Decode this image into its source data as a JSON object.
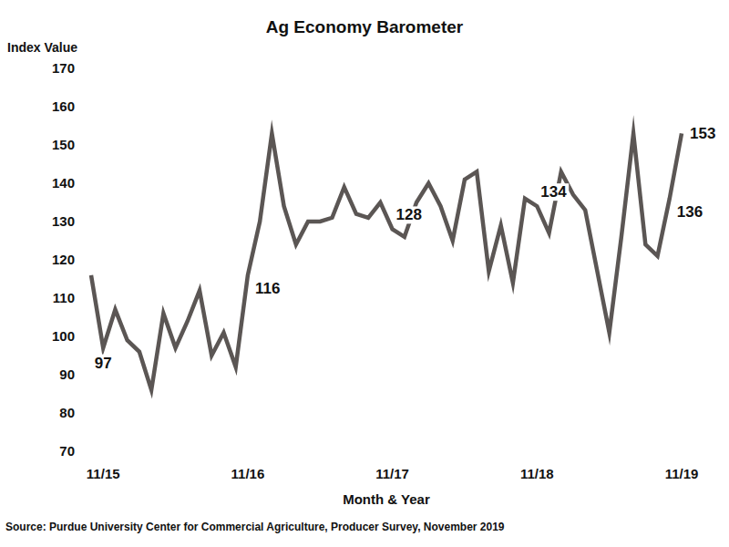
{
  "chart_data": {
    "type": "line",
    "title": "Ag Economy Barometer",
    "y_label": "Index Value",
    "x_label": "Month & Year",
    "source": "Source: Purdue University Center for Commercial Agriculture, Producer Survey, November 2019",
    "categories": [
      null,
      "11/15",
      null,
      null,
      null,
      null,
      null,
      null,
      null,
      null,
      null,
      null,
      null,
      "11/16",
      null,
      null,
      null,
      null,
      null,
      null,
      null,
      null,
      null,
      null,
      null,
      "11/17",
      null,
      null,
      null,
      null,
      null,
      null,
      null,
      null,
      null,
      null,
      null,
      "11/18",
      null,
      null,
      null,
      null,
      null,
      null,
      null,
      null,
      null,
      null,
      null,
      "11/19"
    ],
    "values": [
      116,
      97,
      107,
      99,
      96,
      86,
      106,
      97,
      104,
      112,
      95,
      101,
      92,
      116,
      130,
      153,
      134,
      124,
      130,
      130,
      131,
      139,
      132,
      131,
      135,
      128,
      126,
      135,
      140,
      134,
      125,
      141,
      143,
      117,
      129,
      114,
      136,
      134,
      127,
      143,
      137,
      133,
      117,
      101,
      126,
      153,
      124,
      121,
      136,
      153
    ],
    "value_labels": [
      null,
      "97",
      null,
      null,
      null,
      null,
      null,
      null,
      null,
      null,
      null,
      null,
      null,
      "116",
      null,
      null,
      null,
      null,
      null,
      null,
      null,
      null,
      null,
      null,
      null,
      "128",
      null,
      null,
      null,
      null,
      null,
      null,
      null,
      null,
      null,
      null,
      null,
      "134",
      null,
      null,
      null,
      null,
      null,
      null,
      null,
      null,
      null,
      null,
      "136",
      "153"
    ],
    "color": "#5b5654",
    "ylim": [
      70,
      170
    ],
    "yticks": [
      70,
      80,
      90,
      100,
      110,
      120,
      130,
      140,
      150,
      160,
      170
    ],
    "grid": false
  }
}
